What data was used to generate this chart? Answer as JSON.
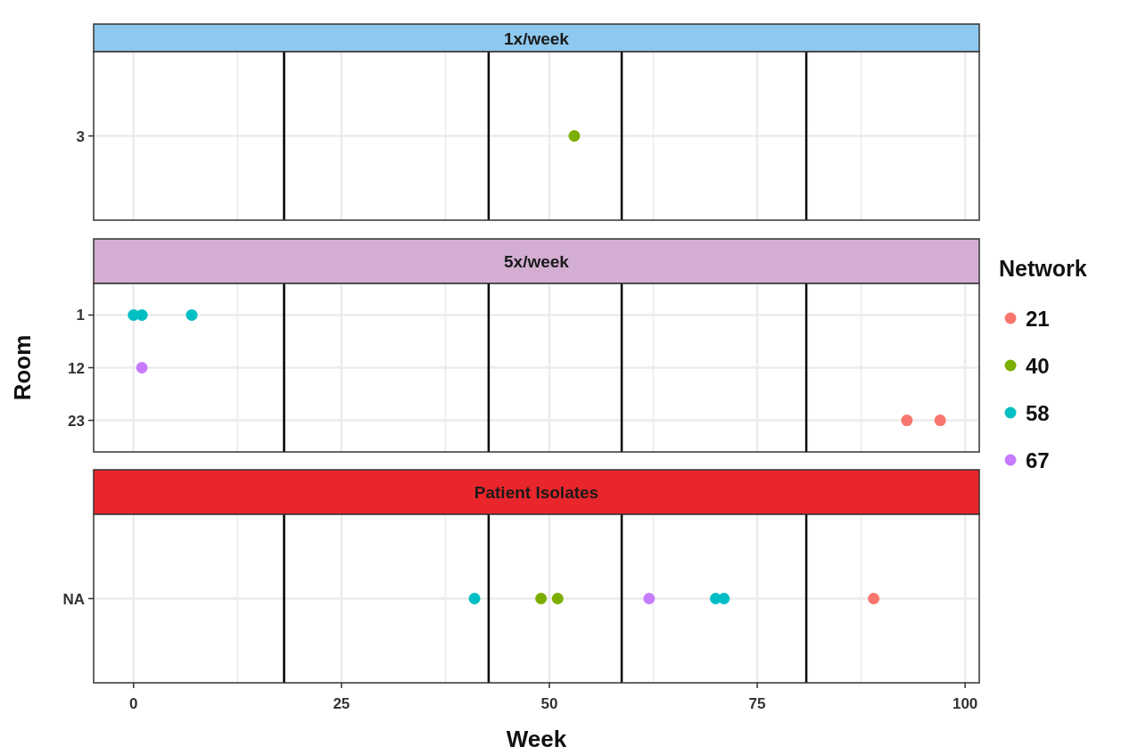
{
  "chart_data": [
    {
      "type": "scatter",
      "orientation": "horizontal",
      "title": "1x/week",
      "categories": [
        "3"
      ],
      "xlim": [
        -4.8,
        101.7
      ],
      "xticks": [
        0,
        {
          "value": 12.5,
          "label": null
        },
        25,
        {
          "value": 37.5,
          "label": null
        },
        50,
        {
          "value": 62.5,
          "label": null
        },
        75,
        {
          "value": 87.5,
          "label": null
        },
        100
      ],
      "tick_labels": "y",
      "grid": true,
      "marker": "circle",
      "series": [
        {
          "color": "#7cae00",
          "values": [
            53
          ]
        }
      ],
      "ref_lines": [
        {
          "axis": "x",
          "value": 18.1,
          "color": "#000000"
        },
        {
          "axis": "x",
          "value": 42.7,
          "color": "#000000"
        },
        {
          "axis": "x",
          "value": 58.7,
          "color": "#000000"
        },
        {
          "axis": "x",
          "value": 80.9,
          "color": "#000000"
        }
      ]
    },
    {
      "type": "scatter",
      "orientation": "horizontal",
      "title": "5x/week",
      "ylabel": "Room",
      "categories": [
        "1",
        "12",
        "23"
      ],
      "xlim": [
        -4.8,
        101.7
      ],
      "xticks": [
        0,
        {
          "value": 12.5,
          "label": null
        },
        25,
        {
          "value": 37.5,
          "label": null
        },
        50,
        {
          "value": 62.5,
          "label": null
        },
        75,
        {
          "value": 87.5,
          "label": null
        },
        100
      ],
      "tick_labels": "y",
      "grid": true,
      "marker": "circle",
      "legend": "right",
      "legend_title": "Network",
      "series": [
        {
          "name": "21",
          "color": "#f8766d",
          "values": [
            null,
            null,
            93
          ]
        },
        {
          "name": "40",
          "color": "#7cae00",
          "values": [
            null,
            null,
            null
          ]
        },
        {
          "name": "58",
          "color": "#00bfc4",
          "values": [
            0,
            null,
            null
          ]
        },
        {
          "name": "67",
          "color": "#c77cff",
          "values": [
            null,
            1,
            null
          ]
        },
        {
          "color": "#f8766d",
          "values": [
            null,
            null,
            97
          ]
        },
        {
          "color": "#00bfc4",
          "values": [
            1,
            null,
            null
          ]
        },
        {
          "color": "#00bfc4",
          "values": [
            7,
            null,
            null
          ]
        }
      ],
      "ref_lines": [
        {
          "axis": "x",
          "value": 18.1,
          "color": "#000000"
        },
        {
          "axis": "x",
          "value": 42.7,
          "color": "#000000"
        },
        {
          "axis": "x",
          "value": 58.7,
          "color": "#000000"
        },
        {
          "axis": "x",
          "value": 80.9,
          "color": "#000000"
        }
      ]
    },
    {
      "type": "scatter",
      "orientation": "horizontal",
      "title": "Patient Isolates",
      "xlabel": "Week",
      "categories": [
        "NA"
      ],
      "xlim": [
        -4.8,
        101.7
      ],
      "xticks": [
        0,
        {
          "value": 12.5,
          "label": null
        },
        25,
        {
          "value": 37.5,
          "label": null
        },
        50,
        {
          "value": 62.5,
          "label": null
        },
        75,
        {
          "value": 87.5,
          "label": null
        },
        100
      ],
      "grid": true,
      "marker": "circle",
      "series": [
        {
          "color": "#00bfc4",
          "values": [
            41
          ]
        },
        {
          "color": "#7cae00",
          "values": [
            49
          ]
        },
        {
          "color": "#7cae00",
          "values": [
            51
          ]
        },
        {
          "color": "#c77cff",
          "values": [
            62
          ]
        },
        {
          "color": "#00bfc4",
          "values": [
            70
          ]
        },
        {
          "color": "#00bfc4",
          "values": [
            71
          ]
        },
        {
          "color": "#f8766d",
          "values": [
            89
          ]
        }
      ],
      "ref_lines": [
        {
          "axis": "x",
          "value": 18.1,
          "color": "#000000"
        },
        {
          "axis": "x",
          "value": 42.7,
          "color": "#000000"
        },
        {
          "axis": "x",
          "value": 58.7,
          "color": "#000000"
        },
        {
          "axis": "x",
          "value": 80.9,
          "color": "#000000"
        }
      ]
    }
  ]
}
